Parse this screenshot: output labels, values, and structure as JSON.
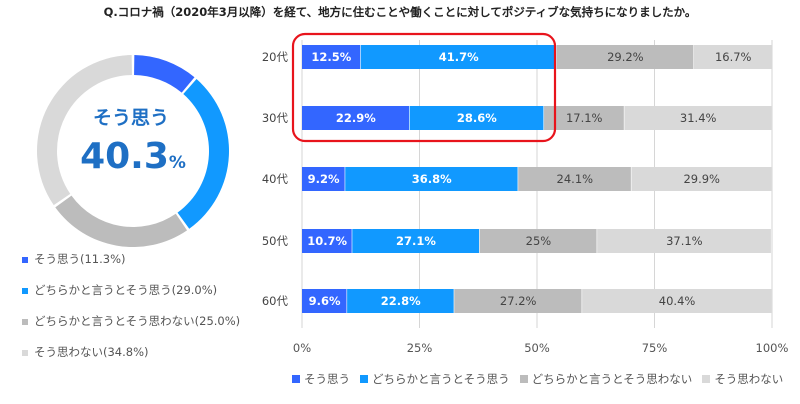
{
  "title": "Q.コロナ禍（2020年3月以降）を経て、地方に住むことや働くことに対してポジティブな気持ちになりましたか。",
  "colors": {
    "c1": "#3366ff",
    "c2": "#1199ff",
    "c3": "#bcbcbc",
    "c4": "#d9d9d9",
    "center_text": "#1e6fc4",
    "highlight": "#e8141c"
  },
  "chart_data": [
    {
      "type": "pie",
      "center_label": "そう思う",
      "center_value": "40.3",
      "center_unit": "%",
      "slices": [
        {
          "label": "そう思う(11.3%)",
          "value": 11.3
        },
        {
          "label": "どちらかと言うとそう思う(29.0%)",
          "value": 29.0
        },
        {
          "label": "どちらかと言うとそう思わない(25.0%)",
          "value": 25.0
        },
        {
          "label": "そう思わない(34.8%)",
          "value": 34.8
        }
      ]
    },
    {
      "type": "bar",
      "orientation": "horizontal",
      "stacked": true,
      "categories": [
        "20代",
        "30代",
        "40代",
        "50代",
        "60代"
      ],
      "series": [
        {
          "name": "そう思う",
          "values": [
            12.5,
            22.9,
            9.2,
            10.7,
            9.6
          ],
          "labels": [
            "12.5%",
            "22.9%",
            "9.2%",
            "10.7%",
            "9.6%"
          ]
        },
        {
          "name": "どちらかと言うとそう思う",
          "values": [
            41.7,
            28.6,
            36.8,
            27.1,
            22.8
          ],
          "labels": [
            "41.7%",
            "28.6%",
            "36.8%",
            "27.1%",
            "22.8%"
          ]
        },
        {
          "name": "どちらかと言うとそう思わない",
          "values": [
            29.2,
            17.1,
            24.1,
            25,
            27.2
          ],
          "labels": [
            "29.2%",
            "17.1%",
            "24.1%",
            "25%",
            "27.2%"
          ]
        },
        {
          "name": "そう思わない",
          "values": [
            16.7,
            31.4,
            29.9,
            37.1,
            40.4
          ],
          "labels": [
            "16.7%",
            "31.4%",
            "29.9%",
            "37.1%",
            "40.4%"
          ]
        }
      ],
      "xlim": [
        0,
        100
      ],
      "xticks": [
        "0%",
        "25%",
        "50%",
        "75%",
        "100%"
      ],
      "grid": true,
      "legend_position": "bottom",
      "highlight_categories": [
        "20代",
        "30代"
      ]
    }
  ]
}
